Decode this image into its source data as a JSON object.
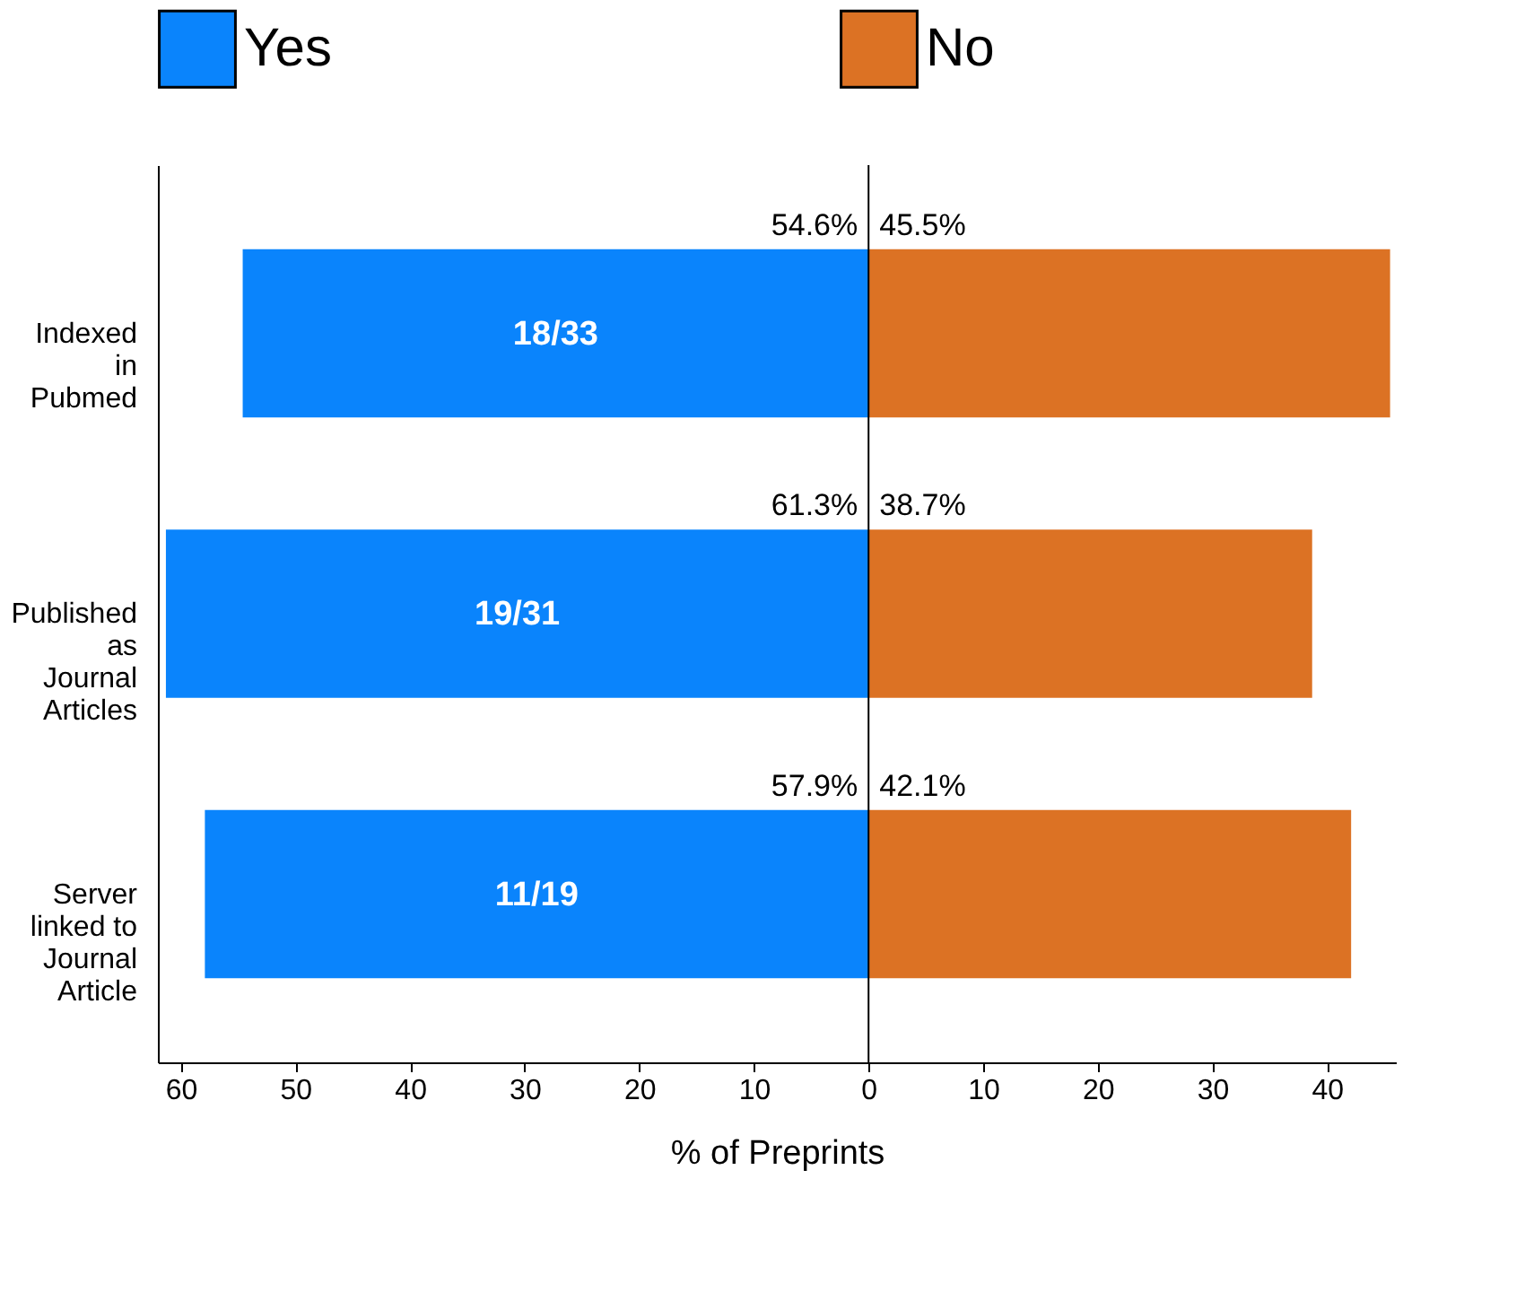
{
  "chart_data": {
    "type": "bar",
    "orientation": "horizontal",
    "xlabel": "% of Preprints",
    "categories": [
      "Indexed\nin\nPubmed",
      "Published\nas\nJournal\nArticles",
      "Server\nlinked to\nJournal\nArticle"
    ],
    "series": [
      {
        "name": "Yes",
        "color": "#0a84fc",
        "values": [
          54.6,
          61.3,
          57.9
        ],
        "base": [
          -54.6,
          -61.3,
          -57.9
        ],
        "value_labels": [
          "54.6%",
          "61.3%",
          "57.9%"
        ]
      },
      {
        "name": "No",
        "color": "#dc7224",
        "values": [
          45.5,
          38.7,
          42.1
        ],
        "base": [
          0,
          0,
          0
        ],
        "value_labels": [
          "45.5%",
          "38.7%",
          "42.1%"
        ]
      }
    ],
    "annotations": [
      "18/33",
      "19/31",
      "11/19"
    ],
    "ref_lines": [
      {
        "axis": "x",
        "value": 0,
        "color": "#000000"
      }
    ],
    "xlim": [
      -62,
      46
    ],
    "xticks": [
      {
        "value": -60,
        "label": "60"
      },
      {
        "value": -50,
        "label": "50"
      },
      {
        "value": -40,
        "label": "40"
      },
      {
        "value": -30,
        "label": "30"
      },
      {
        "value": -20,
        "label": "20"
      },
      {
        "value": -10,
        "label": "10"
      },
      0,
      10,
      20,
      30,
      40
    ],
    "grid": false,
    "legend": "top"
  }
}
